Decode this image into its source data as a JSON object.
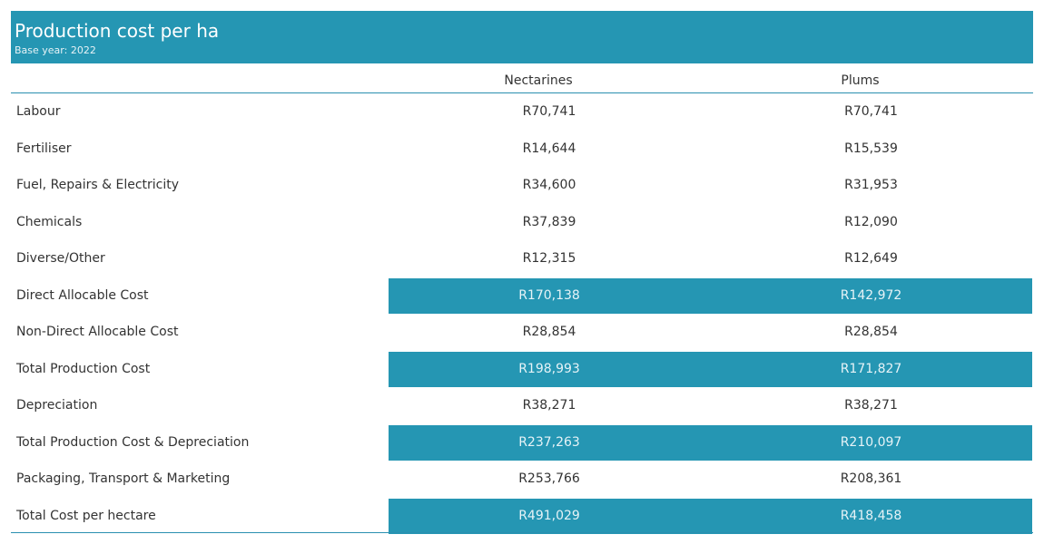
{
  "header": {
    "title": "Production cost per ha",
    "subtitle": "Base year: 2022"
  },
  "colors": {
    "accent": "#2596b3",
    "rule": "#2a8fb0"
  },
  "chart_data": {
    "type": "table",
    "columns": [
      "Nectarines",
      "Plums"
    ],
    "rows": [
      {
        "label": "Labour",
        "values": [
          "R70,741",
          "R70,741"
        ],
        "highlight": false
      },
      {
        "label": "Fertiliser",
        "values": [
          "R14,644",
          "R15,539"
        ],
        "highlight": false
      },
      {
        "label": "Fuel, Repairs & Electricity",
        "values": [
          "R34,600",
          "R31,953"
        ],
        "highlight": false
      },
      {
        "label": "Chemicals",
        "values": [
          "R37,839",
          "R12,090"
        ],
        "highlight": false
      },
      {
        "label": "Diverse/Other",
        "values": [
          "R12,315",
          "R12,649"
        ],
        "highlight": false
      },
      {
        "label": "Direct Allocable Cost",
        "values": [
          "R170,138",
          "R142,972"
        ],
        "highlight": true
      },
      {
        "label": "Non-Direct Allocable Cost",
        "values": [
          "R28,854",
          "R28,854"
        ],
        "highlight": false
      },
      {
        "label": "Total Production Cost",
        "values": [
          "R198,993",
          "R171,827"
        ],
        "highlight": true
      },
      {
        "label": "Depreciation",
        "values": [
          "R38,271",
          "R38,271"
        ],
        "highlight": false
      },
      {
        "label": "Total Production Cost & Depreciation",
        "values": [
          "R237,263",
          "R210,097"
        ],
        "highlight": true
      },
      {
        "label": "Packaging, Transport & Marketing",
        "values": [
          "R253,766",
          "R208,361"
        ],
        "highlight": false
      },
      {
        "label": "Total Cost per hectare",
        "values": [
          "R491,029",
          "R418,458"
        ],
        "highlight": true
      }
    ]
  }
}
